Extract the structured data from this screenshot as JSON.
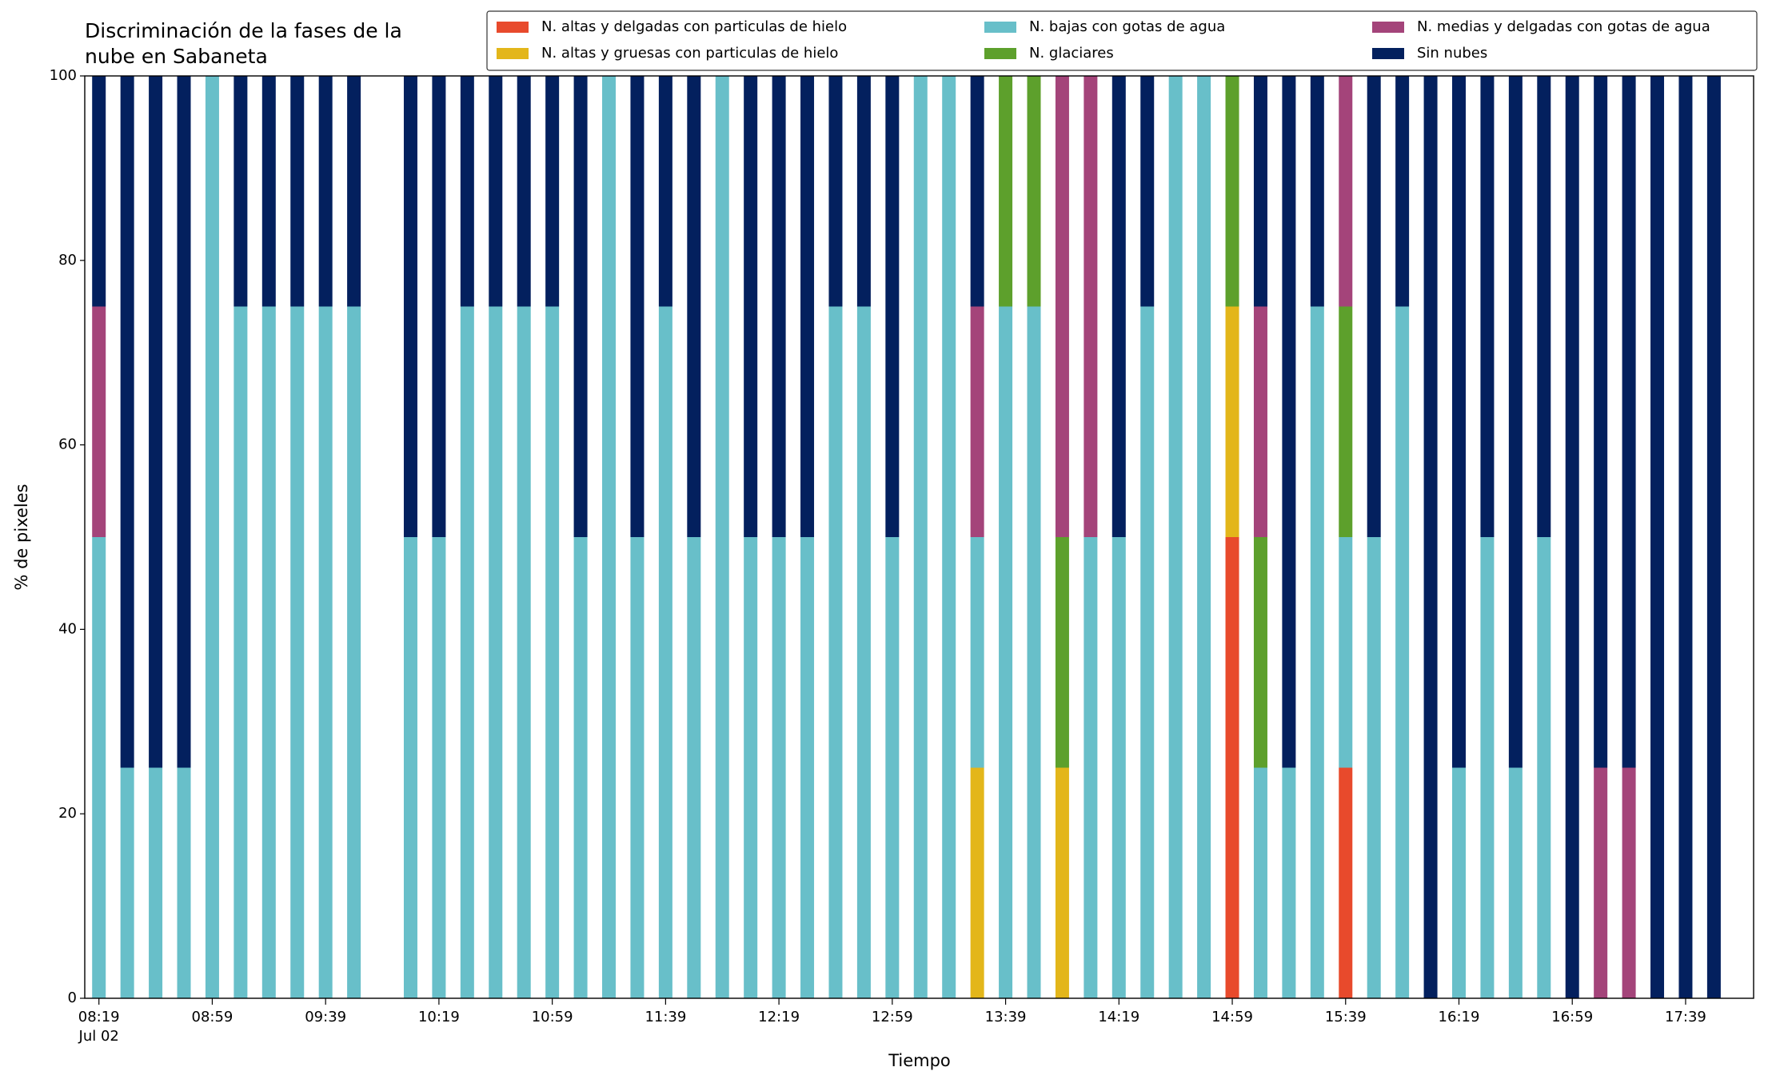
{
  "chart_data": {
    "type": "bar",
    "stacked": true,
    "title": [
      "Discriminación de la fases de la",
      "nube en Sabaneta"
    ],
    "xlabel": "Tiempo",
    "ylabel": "% de pixeles",
    "x_date_label": "Jul 02",
    "x": [
      "08:19",
      "08:29",
      "08:39",
      "08:49",
      "08:59",
      "09:09",
      "09:19",
      "09:29",
      "09:39",
      "09:49",
      "10:09",
      "10:19",
      "10:29",
      "10:39",
      "10:49",
      "10:59",
      "11:09",
      "11:19",
      "11:29",
      "11:39",
      "11:49",
      "11:59",
      "12:09",
      "12:19",
      "12:29",
      "12:39",
      "12:49",
      "12:59",
      "13:09",
      "13:19",
      "13:29",
      "13:39",
      "13:49",
      "13:59",
      "14:09",
      "14:19",
      "14:29",
      "14:39",
      "14:49",
      "14:59",
      "15:09",
      "15:19",
      "15:29",
      "15:39",
      "15:49",
      "15:59",
      "16:09",
      "16:19",
      "16:29",
      "16:39",
      "16:49",
      "16:59",
      "17:09",
      "17:19",
      "17:29",
      "17:39",
      "17:49"
    ],
    "xlim": [
      "08:14",
      "18:03"
    ],
    "xticks": [
      "08:19",
      "08:59",
      "09:39",
      "10:19",
      "10:59",
      "11:39",
      "12:19",
      "12:59",
      "13:39",
      "14:19",
      "14:59",
      "15:39",
      "16:19",
      "16:59",
      "17:39"
    ],
    "ylim": [
      0,
      100
    ],
    "yticks": [
      0,
      20,
      40,
      60,
      80,
      100
    ],
    "legend": "top-right",
    "series": [
      {
        "name": "N. altas y delgadas con particulas de hielo",
        "color": "#e84a2c",
        "values": [
          0,
          0,
          0,
          0,
          0,
          0,
          0,
          0,
          0,
          0,
          0,
          0,
          0,
          0,
          0,
          0,
          0,
          0,
          0,
          0,
          0,
          0,
          0,
          0,
          0,
          0,
          0,
          0,
          0,
          0,
          0,
          0,
          0,
          0,
          0,
          0,
          0,
          0,
          0,
          50,
          0,
          0,
          0,
          25,
          0,
          0,
          0,
          0,
          0,
          0,
          0,
          0,
          0,
          0,
          0,
          0,
          0
        ]
      },
      {
        "name": "N. altas y gruesas con particulas de hielo",
        "color": "#e3b61a",
        "values": [
          0,
          0,
          0,
          0,
          0,
          0,
          0,
          0,
          0,
          0,
          0,
          0,
          0,
          0,
          0,
          0,
          0,
          0,
          0,
          0,
          0,
          0,
          0,
          0,
          0,
          0,
          0,
          0,
          0,
          0,
          25,
          0,
          0,
          25,
          0,
          0,
          0,
          0,
          0,
          25,
          0,
          0,
          0,
          0,
          0,
          0,
          0,
          0,
          0,
          0,
          0,
          0,
          0,
          0,
          0,
          0,
          0
        ]
      },
      {
        "name": "N. bajas con gotas de agua",
        "color": "#68bfc9",
        "values": [
          50,
          25,
          25,
          25,
          100,
          75,
          75,
          75,
          75,
          75,
          50,
          50,
          75,
          75,
          75,
          75,
          50,
          100,
          50,
          75,
          50,
          100,
          50,
          50,
          50,
          75,
          75,
          50,
          100,
          100,
          25,
          75,
          75,
          0,
          50,
          50,
          75,
          100,
          100,
          0,
          25,
          25,
          75,
          25,
          50,
          75,
          0,
          25,
          50,
          25,
          50,
          0,
          0,
          0,
          0,
          0,
          0
        ]
      },
      {
        "name": "N. glaciares",
        "color": "#5da02c",
        "values": [
          0,
          0,
          0,
          0,
          0,
          0,
          0,
          0,
          0,
          0,
          0,
          0,
          0,
          0,
          0,
          0,
          0,
          0,
          0,
          0,
          0,
          0,
          0,
          0,
          0,
          0,
          0,
          0,
          0,
          0,
          0,
          25,
          25,
          25,
          0,
          0,
          0,
          0,
          0,
          25,
          25,
          0,
          0,
          25,
          0,
          0,
          0,
          0,
          0,
          0,
          0,
          0,
          0,
          0,
          0,
          0,
          0
        ]
      },
      {
        "name": "N. medias y delgadas con gotas de agua",
        "color": "#a4447a",
        "values": [
          25,
          0,
          0,
          0,
          0,
          0,
          0,
          0,
          0,
          0,
          0,
          0,
          0,
          0,
          0,
          0,
          0,
          0,
          0,
          0,
          0,
          0,
          0,
          0,
          0,
          0,
          0,
          0,
          0,
          0,
          25,
          0,
          0,
          50,
          50,
          0,
          0,
          0,
          0,
          0,
          25,
          0,
          0,
          25,
          0,
          0,
          0,
          0,
          0,
          0,
          0,
          0,
          25,
          25,
          0,
          0,
          0
        ]
      },
      {
        "name": "Sin nubes",
        "color": "#03205e",
        "values": [
          25,
          75,
          75,
          75,
          0,
          25,
          25,
          25,
          25,
          25,
          50,
          50,
          25,
          25,
          25,
          25,
          50,
          0,
          50,
          25,
          50,
          0,
          50,
          50,
          50,
          25,
          25,
          50,
          0,
          0,
          25,
          0,
          0,
          0,
          0,
          50,
          25,
          0,
          0,
          0,
          25,
          75,
          25,
          0,
          50,
          25,
          100,
          75,
          50,
          75,
          50,
          100,
          75,
          75,
          100,
          100,
          100
        ]
      }
    ]
  }
}
